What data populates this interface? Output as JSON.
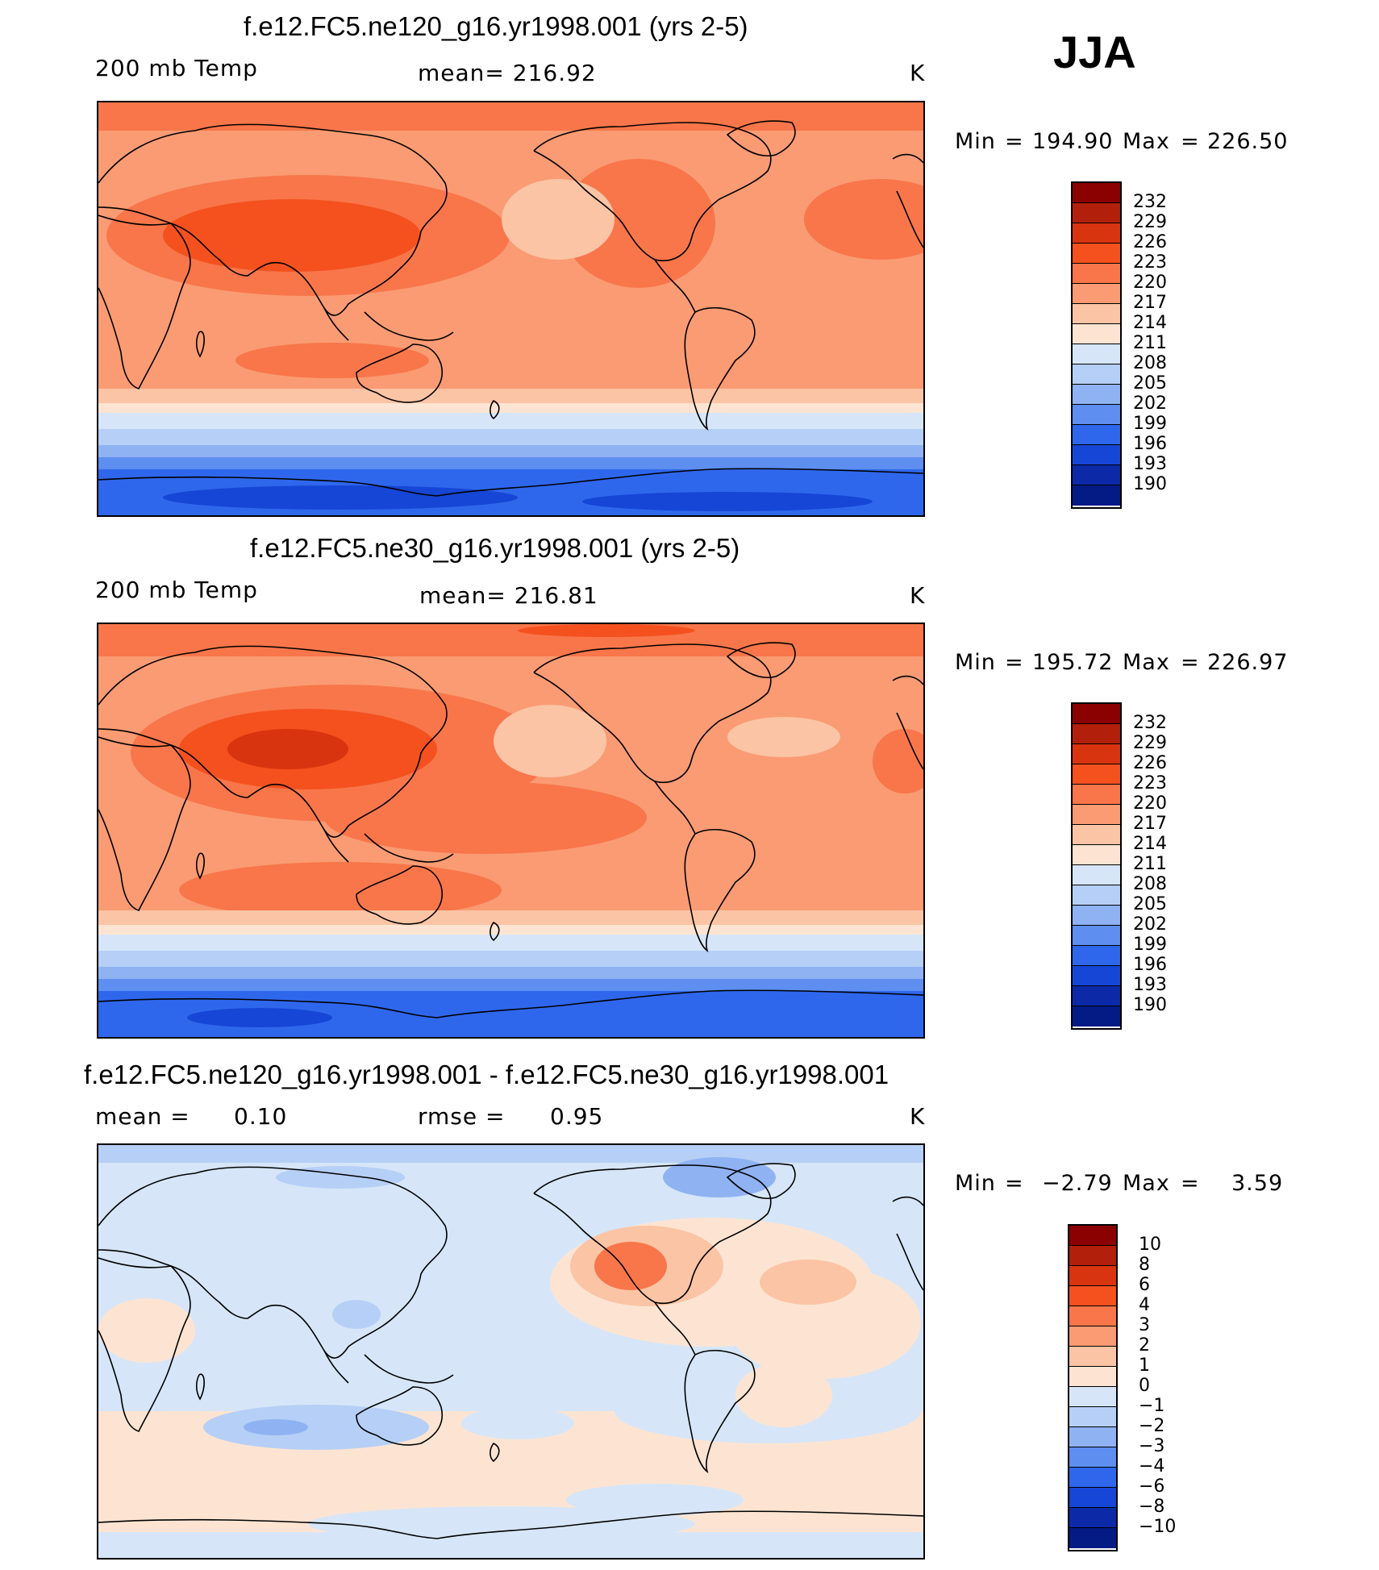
{
  "figure": {
    "season_label": "JJA"
  },
  "chart_data": [
    {
      "type": "heatmap",
      "title": "f.e12.FC5.ne120_g16.yr1998.001 (yrs 2-5)",
      "variable_label": "200 mb Temp",
      "mean_label": "mean= 216.92",
      "units": "K",
      "min_label": "Min",
      "min_value": "194.90",
      "max_label": "Max",
      "max_value": "226.50",
      "colorbar_levels": [
        "232",
        "229",
        "226",
        "223",
        "220",
        "217",
        "214",
        "211",
        "208",
        "205",
        "202",
        "199",
        "196",
        "193",
        "190"
      ],
      "colorbar_colors": [
        "#8b0000",
        "#b21f0a",
        "#d8340f",
        "#f4511e",
        "#f8764a",
        "#fa9b73",
        "#fbc4a5",
        "#fde4d2",
        "#d6e6f8",
        "#b6cff6",
        "#8fb2f2",
        "#5d8ef0",
        "#2f67ec",
        "#1646d6",
        "#0c2aa8",
        "#041a85"
      ]
    },
    {
      "type": "heatmap",
      "title": "f.e12.FC5.ne30_g16.yr1998.001 (yrs 2-5)",
      "variable_label": "200 mb Temp",
      "mean_label": "mean= 216.81",
      "units": "K",
      "min_label": "Min",
      "min_value": "195.72",
      "max_label": "Max",
      "max_value": "226.97",
      "colorbar_levels": [
        "232",
        "229",
        "226",
        "223",
        "220",
        "217",
        "214",
        "211",
        "208",
        "205",
        "202",
        "199",
        "196",
        "193",
        "190"
      ],
      "colorbar_colors": [
        "#8b0000",
        "#b21f0a",
        "#d8340f",
        "#f4511e",
        "#f8764a",
        "#fa9b73",
        "#fbc4a5",
        "#fde4d2",
        "#d6e6f8",
        "#b6cff6",
        "#8fb2f2",
        "#5d8ef0",
        "#2f67ec",
        "#1646d6",
        "#0c2aa8",
        "#041a85"
      ]
    },
    {
      "type": "heatmap",
      "title": "f.e12.FC5.ne120_g16.yr1998.001 - f.e12.FC5.ne30_g16.yr1998.001",
      "mean_label": "mean =",
      "mean_value": "0.10",
      "rmse_label": "rmse =",
      "rmse_value": "0.95",
      "units": "K",
      "min_label": "Min",
      "min_value": "−2.79",
      "max_label": "Max",
      "max_value": "3.59",
      "colorbar_levels": [
        "10",
        "8",
        "6",
        "4",
        "3",
        "2",
        "1",
        "0",
        "−1",
        "−2",
        "−3",
        "−4",
        "−6",
        "−8",
        "−10"
      ],
      "colorbar_colors": [
        "#8b0000",
        "#b21f0a",
        "#d8340f",
        "#f4511e",
        "#f8764a",
        "#fa9b73",
        "#fbc4a5",
        "#fde4d2",
        "#d6e6f8",
        "#b6cff6",
        "#8fb2f2",
        "#5d8ef0",
        "#2f67ec",
        "#1646d6",
        "#0c2aa8",
        "#041a85"
      ]
    }
  ]
}
